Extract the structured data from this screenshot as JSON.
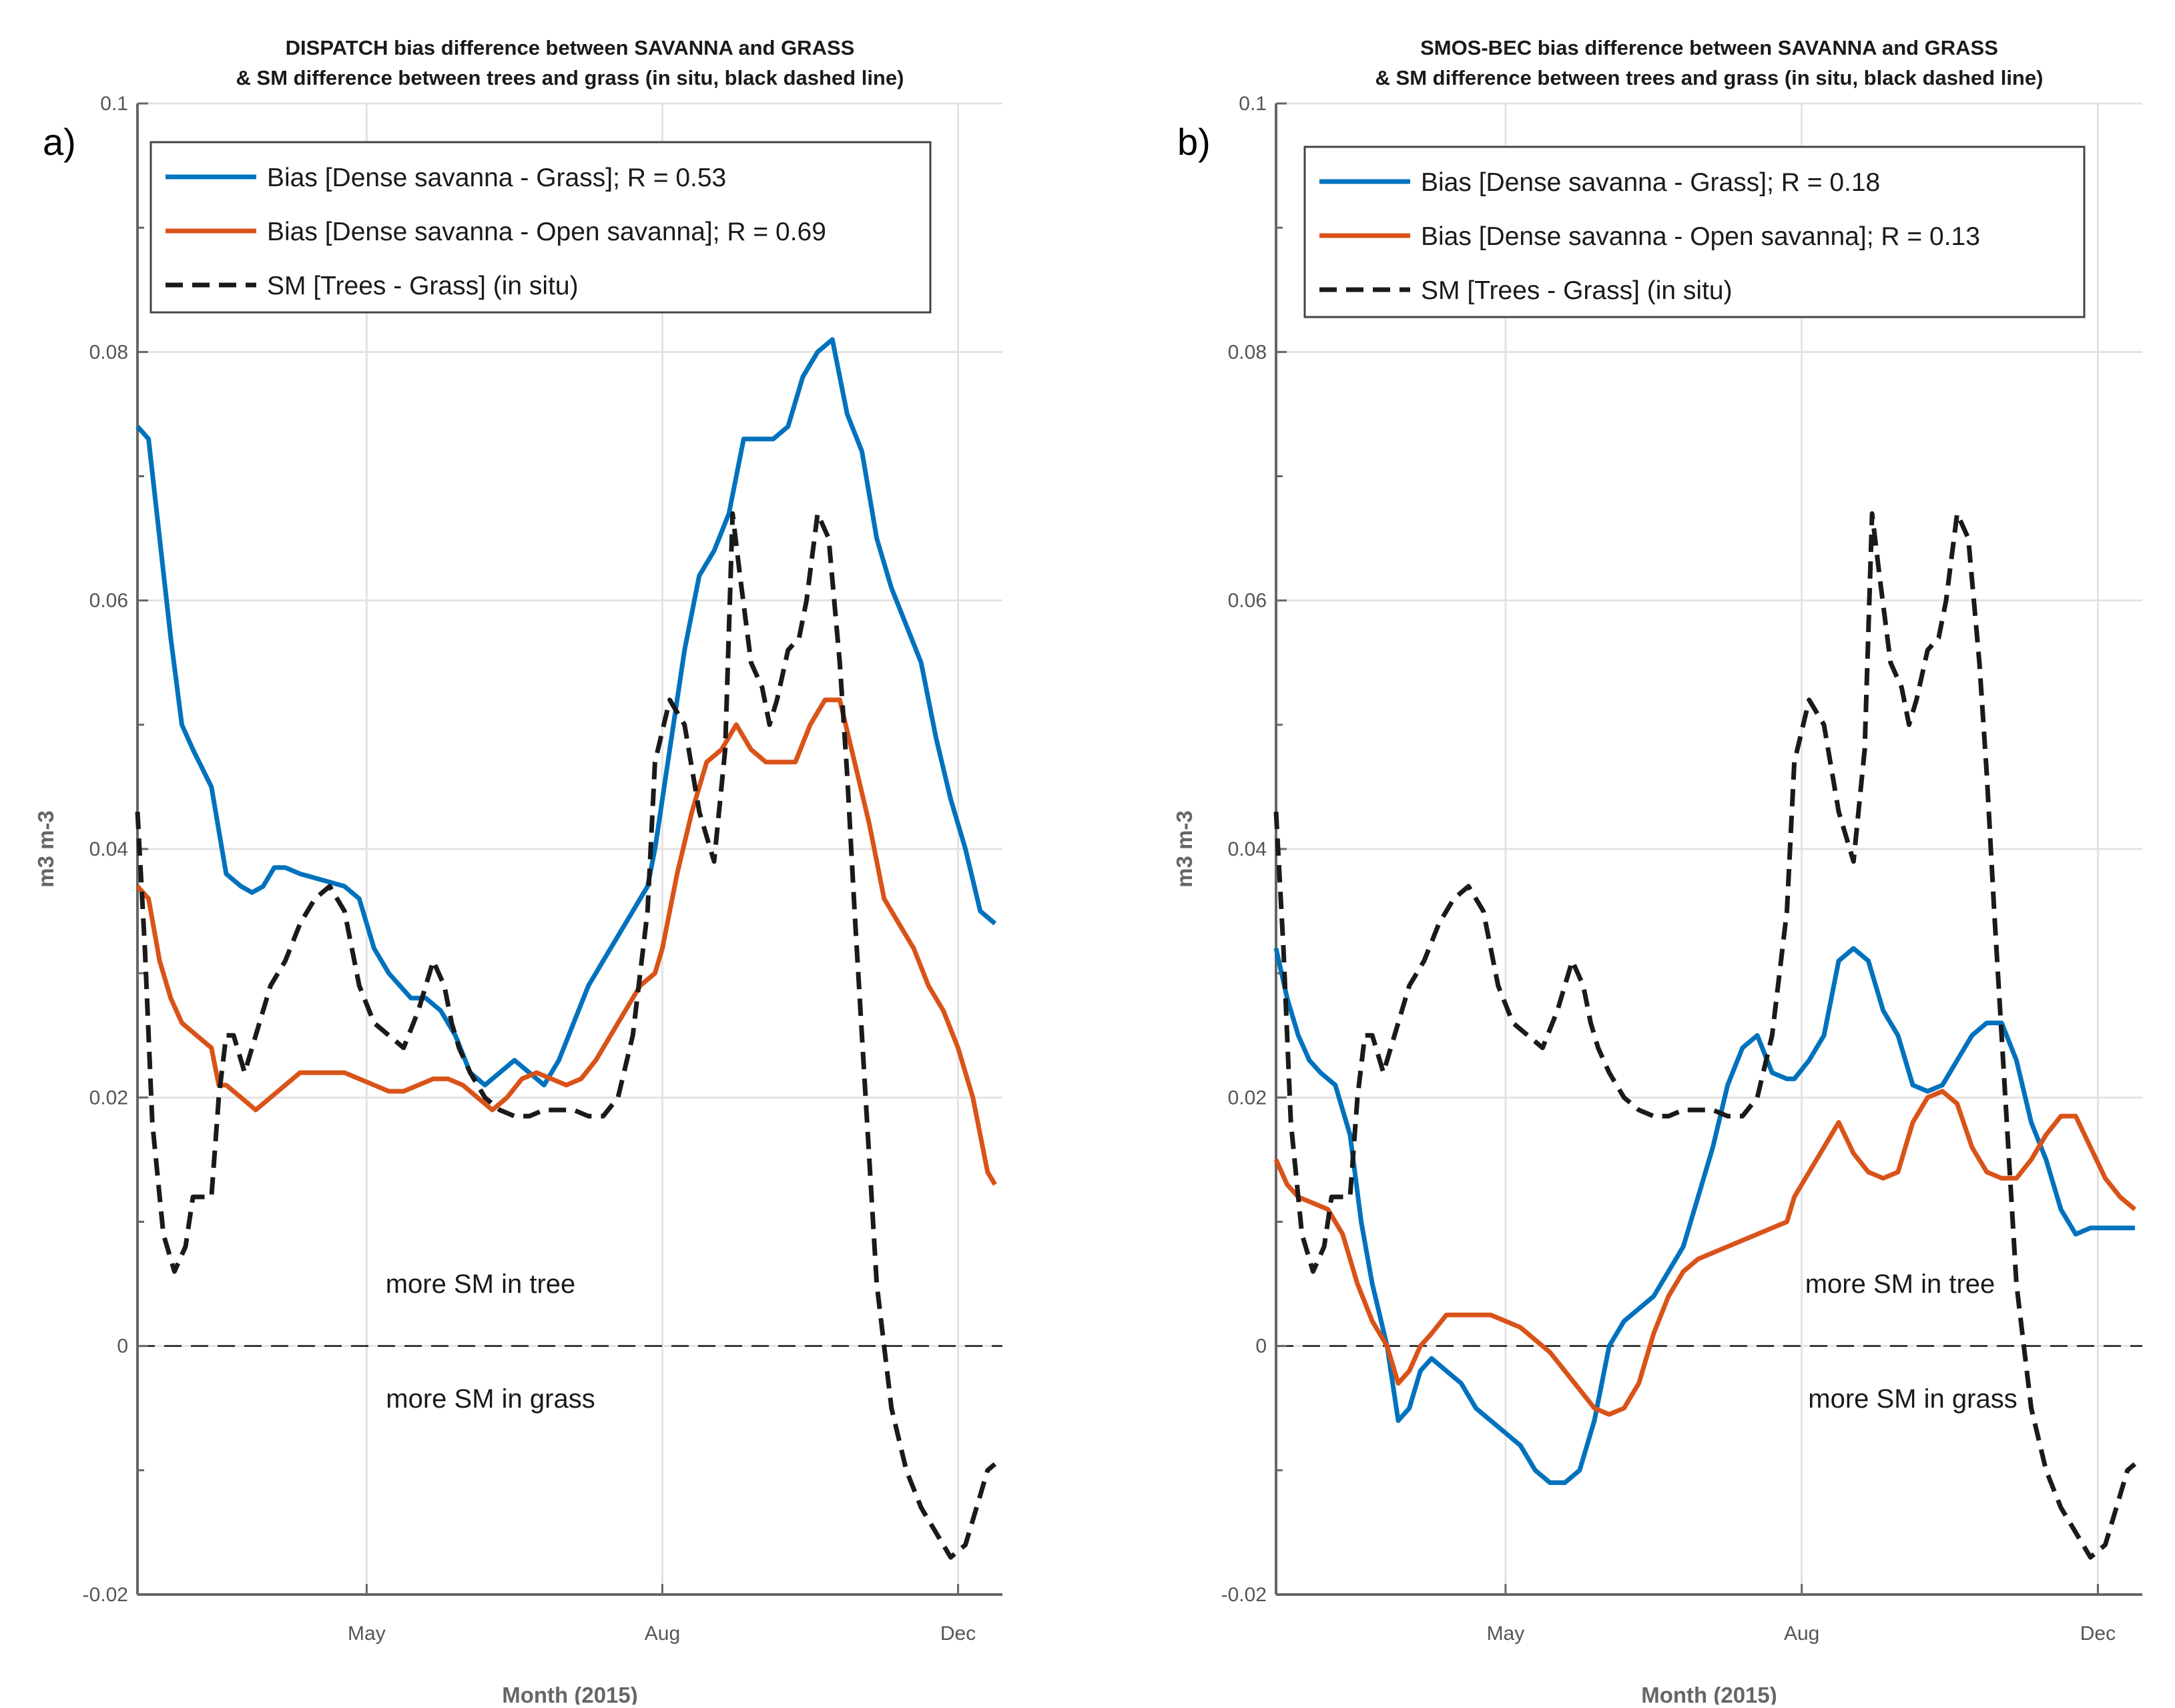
{
  "chart_data": [
    {
      "type": "line",
      "panel_label": "a)",
      "title": [
        "DISPATCH bias difference between SAVANNA and GRASS",
        "& SM difference between trees and grass (in situ, black dashed line)"
      ],
      "xlabel": "Month (2015)",
      "ylabel": "m3 m-3",
      "ylim": [
        -0.02,
        0.1
      ],
      "yticks": [
        -0.02,
        0,
        0.02,
        0.04,
        0.06,
        0.08,
        0.1
      ],
      "ytick_labels": [
        "-0.02",
        "0",
        "0.02",
        "0.04",
        "0.06",
        "0.08",
        "0.1"
      ],
      "xlim": [
        0,
        11.7
      ],
      "xticks": [
        3.1,
        7.1,
        11.1
      ],
      "xtick_labels": [
        "May",
        "Aug",
        "Dec"
      ],
      "grid": true,
      "legend_position": "top-left",
      "annotations": [
        "more SM in tree",
        "more SM in grass"
      ],
      "zero_line": true,
      "series": [
        {
          "name": "Bias [Dense savanna - Grass]; R = 0.53",
          "color": "#0072BD",
          "style": "solid",
          "x": [
            0,
            0.15,
            0.3,
            0.45,
            0.6,
            0.75,
            1.0,
            1.2,
            1.4,
            1.55,
            1.7,
            1.85,
            2.0,
            2.2,
            2.5,
            2.8,
            3.0,
            3.2,
            3.4,
            3.7,
            3.9,
            4.1,
            4.3,
            4.5,
            4.7,
            4.9,
            5.1,
            5.3,
            5.5,
            5.7,
            5.9,
            6.1,
            6.3,
            6.5,
            6.7,
            6.9,
            7.0,
            7.2,
            7.4,
            7.6,
            7.8,
            8.0,
            8.2,
            8.4,
            8.6,
            8.8,
            9.0,
            9.2,
            9.4,
            9.6,
            9.8,
            10.0,
            10.2,
            10.4,
            10.6,
            10.8,
            11.0,
            11.2,
            11.4,
            11.6
          ],
          "values": [
            0.074,
            0.073,
            0.065,
            0.057,
            0.05,
            0.048,
            0.045,
            0.038,
            0.037,
            0.0365,
            0.037,
            0.0385,
            0.0385,
            0.038,
            0.0375,
            0.037,
            0.036,
            0.032,
            0.03,
            0.028,
            0.028,
            0.027,
            0.025,
            0.022,
            0.021,
            0.022,
            0.023,
            0.022,
            0.021,
            0.023,
            0.026,
            0.029,
            0.031,
            0.033,
            0.035,
            0.037,
            0.04,
            0.048,
            0.056,
            0.062,
            0.064,
            0.067,
            0.073,
            0.073,
            0.073,
            0.074,
            0.078,
            0.08,
            0.081,
            0.075,
            0.072,
            0.065,
            0.061,
            0.058,
            0.055,
            0.049,
            0.044,
            0.04,
            0.035,
            0.034
          ]
        },
        {
          "name": "Bias [Dense savanna - Open savanna]; R = 0.69",
          "color": "#D95319",
          "style": "solid",
          "x": [
            0,
            0.15,
            0.3,
            0.45,
            0.6,
            0.8,
            1.0,
            1.1,
            1.2,
            1.4,
            1.6,
            1.8,
            2.0,
            2.2,
            2.5,
            2.8,
            3.0,
            3.2,
            3.4,
            3.6,
            3.8,
            4.0,
            4.2,
            4.4,
            4.6,
            4.8,
            5.0,
            5.2,
            5.4,
            5.6,
            5.8,
            6.0,
            6.2,
            6.4,
            6.6,
            6.8,
            7.0,
            7.1,
            7.3,
            7.5,
            7.7,
            7.9,
            8.1,
            8.3,
            8.5,
            8.7,
            8.9,
            9.1,
            9.3,
            9.5,
            9.7,
            9.9,
            10.1,
            10.3,
            10.5,
            10.7,
            10.9,
            11.1,
            11.3,
            11.5,
            11.6
          ],
          "values": [
            0.037,
            0.036,
            0.031,
            0.028,
            0.026,
            0.025,
            0.024,
            0.021,
            0.021,
            0.02,
            0.019,
            0.02,
            0.021,
            0.022,
            0.022,
            0.022,
            0.0215,
            0.021,
            0.0205,
            0.0205,
            0.021,
            0.0215,
            0.0215,
            0.021,
            0.02,
            0.019,
            0.02,
            0.0215,
            0.022,
            0.0215,
            0.021,
            0.0215,
            0.023,
            0.025,
            0.027,
            0.029,
            0.03,
            0.032,
            0.038,
            0.043,
            0.047,
            0.048,
            0.05,
            0.048,
            0.047,
            0.047,
            0.047,
            0.05,
            0.052,
            0.052,
            0.047,
            0.042,
            0.036,
            0.034,
            0.032,
            0.029,
            0.027,
            0.024,
            0.02,
            0.014,
            0.013
          ]
        },
        {
          "name": "SM [Trees - Grass] (in situ)",
          "color": "#1a1a1a",
          "style": "dashed",
          "x": [
            0,
            0.1,
            0.2,
            0.35,
            0.5,
            0.65,
            0.75,
            0.85,
            1.0,
            1.1,
            1.2,
            1.3,
            1.45,
            1.6,
            1.8,
            2.0,
            2.2,
            2.4,
            2.6,
            2.8,
            3.0,
            3.2,
            3.4,
            3.6,
            3.8,
            4.0,
            4.15,
            4.25,
            4.35,
            4.5,
            4.7,
            4.9,
            5.1,
            5.3,
            5.5,
            5.7,
            5.9,
            6.1,
            6.3,
            6.5,
            6.7,
            6.9,
            7.0,
            7.2,
            7.4,
            7.6,
            7.8,
            7.95,
            8.05,
            8.15,
            8.3,
            8.45,
            8.55,
            8.65,
            8.8,
            8.95,
            9.05,
            9.2,
            9.35,
            9.5,
            9.6,
            9.7,
            9.8,
            9.9,
            10.0,
            10.2,
            10.4,
            10.6,
            10.8,
            11.0,
            11.2,
            11.4,
            11.5,
            11.6
          ],
          "values": [
            0.043,
            0.032,
            0.018,
            0.009,
            0.006,
            0.008,
            0.012,
            0.012,
            0.012,
            0.02,
            0.025,
            0.025,
            0.022,
            0.025,
            0.029,
            0.031,
            0.034,
            0.036,
            0.037,
            0.035,
            0.029,
            0.026,
            0.025,
            0.024,
            0.027,
            0.031,
            0.029,
            0.026,
            0.024,
            0.022,
            0.02,
            0.019,
            0.0185,
            0.0185,
            0.019,
            0.019,
            0.019,
            0.0185,
            0.0185,
            0.02,
            0.025,
            0.035,
            0.047,
            0.052,
            0.05,
            0.043,
            0.039,
            0.048,
            0.067,
            0.062,
            0.055,
            0.053,
            0.05,
            0.052,
            0.056,
            0.057,
            0.06,
            0.067,
            0.065,
            0.055,
            0.046,
            0.035,
            0.025,
            0.015,
            0.005,
            -0.005,
            -0.01,
            -0.013,
            -0.015,
            -0.017,
            -0.016,
            -0.012,
            -0.01,
            -0.0095
          ]
        }
      ]
    },
    {
      "type": "line",
      "panel_label": "b)",
      "title": [
        "SMOS-BEC bias difference between SAVANNA and GRASS",
        "& SM difference between trees and grass (in situ, black dashed line)"
      ],
      "xlabel": "Month (2015)",
      "ylabel": "m3 m-3",
      "ylim": [
        -0.02,
        0.1
      ],
      "yticks": [
        -0.02,
        0,
        0.02,
        0.04,
        0.06,
        0.08,
        0.1
      ],
      "ytick_labels": [
        "-0.02",
        "0",
        "0.02",
        "0.04",
        "0.06",
        "0.08",
        "0.1"
      ],
      "xlim": [
        0,
        11.7
      ],
      "xticks": [
        3.1,
        7.1,
        11.1
      ],
      "xtick_labels": [
        "May",
        "Aug",
        "Dec"
      ],
      "grid": true,
      "legend_position": "top-left",
      "annotations": [
        "more SM in tree",
        "more SM in grass"
      ],
      "zero_line": true,
      "series": [
        {
          "name": "Bias [Dense savanna - Grass]; R = 0.18",
          "color": "#0072BD",
          "style": "solid",
          "x": [
            0,
            0.15,
            0.3,
            0.45,
            0.6,
            0.8,
            1.0,
            1.15,
            1.3,
            1.5,
            1.65,
            1.8,
            1.95,
            2.1,
            2.3,
            2.5,
            2.7,
            2.9,
            3.1,
            3.3,
            3.5,
            3.7,
            3.9,
            4.1,
            4.3,
            4.5,
            4.7,
            4.9,
            5.1,
            5.3,
            5.5,
            5.7,
            5.9,
            6.1,
            6.3,
            6.5,
            6.7,
            6.9,
            7.0,
            7.2,
            7.4,
            7.6,
            7.8,
            8.0,
            8.2,
            8.4,
            8.6,
            8.8,
            9.0,
            9.2,
            9.4,
            9.6,
            9.8,
            10.0,
            10.2,
            10.4,
            10.6,
            10.8,
            11.0,
            11.2,
            11.4,
            11.6
          ],
          "values": [
            0.032,
            0.028,
            0.025,
            0.023,
            0.022,
            0.021,
            0.017,
            0.01,
            0.005,
            0.0,
            -0.006,
            -0.005,
            -0.002,
            -0.001,
            -0.002,
            -0.003,
            -0.005,
            -0.006,
            -0.007,
            -0.008,
            -0.01,
            -0.011,
            -0.011,
            -0.01,
            -0.006,
            0.0,
            0.002,
            0.003,
            0.004,
            0.006,
            0.008,
            0.012,
            0.016,
            0.021,
            0.024,
            0.025,
            0.022,
            0.0215,
            0.0215,
            0.023,
            0.025,
            0.031,
            0.032,
            0.031,
            0.027,
            0.025,
            0.021,
            0.0205,
            0.021,
            0.023,
            0.025,
            0.026,
            0.026,
            0.023,
            0.018,
            0.015,
            0.011,
            0.009,
            0.0095,
            0.0095,
            0.0095,
            0.0095
          ]
        },
        {
          "name": "Bias [Dense savanna - Open savanna]; R = 0.13",
          "color": "#D95319",
          "style": "solid",
          "x": [
            0,
            0.15,
            0.3,
            0.5,
            0.7,
            0.9,
            1.1,
            1.3,
            1.5,
            1.65,
            1.8,
            1.95,
            2.1,
            2.3,
            2.5,
            2.7,
            2.9,
            3.1,
            3.3,
            3.5,
            3.7,
            3.9,
            4.1,
            4.3,
            4.5,
            4.7,
            4.9,
            5.1,
            5.3,
            5.5,
            5.7,
            5.9,
            6.1,
            6.3,
            6.5,
            6.7,
            6.9,
            7.0,
            7.2,
            7.4,
            7.6,
            7.8,
            8.0,
            8.2,
            8.4,
            8.6,
            8.8,
            9.0,
            9.2,
            9.4,
            9.6,
            9.8,
            10.0,
            10.2,
            10.4,
            10.6,
            10.8,
            11.0,
            11.2,
            11.4,
            11.6
          ],
          "values": [
            0.015,
            0.013,
            0.012,
            0.0115,
            0.011,
            0.009,
            0.005,
            0.002,
            0.0,
            -0.003,
            -0.002,
            0.0,
            0.001,
            0.0025,
            0.0025,
            0.0025,
            0.0025,
            0.002,
            0.0015,
            0.0005,
            -0.0005,
            -0.002,
            -0.0035,
            -0.005,
            -0.0055,
            -0.005,
            -0.003,
            0.001,
            0.004,
            0.006,
            0.007,
            0.0075,
            0.008,
            0.0085,
            0.009,
            0.0095,
            0.01,
            0.012,
            0.014,
            0.016,
            0.018,
            0.0155,
            0.014,
            0.0135,
            0.014,
            0.018,
            0.02,
            0.0205,
            0.0195,
            0.016,
            0.014,
            0.0135,
            0.0135,
            0.015,
            0.017,
            0.0185,
            0.0185,
            0.016,
            0.0135,
            0.012,
            0.011
          ]
        },
        {
          "name": "SM [Trees - Grass] (in situ)",
          "color": "#1a1a1a",
          "style": "dashed",
          "x": [
            0,
            0.1,
            0.2,
            0.35,
            0.5,
            0.65,
            0.75,
            0.85,
            1.0,
            1.1,
            1.2,
            1.3,
            1.45,
            1.6,
            1.8,
            2.0,
            2.2,
            2.4,
            2.6,
            2.8,
            3.0,
            3.2,
            3.4,
            3.6,
            3.8,
            4.0,
            4.15,
            4.25,
            4.35,
            4.5,
            4.7,
            4.9,
            5.1,
            5.3,
            5.5,
            5.7,
            5.9,
            6.1,
            6.3,
            6.5,
            6.7,
            6.9,
            7.0,
            7.2,
            7.4,
            7.6,
            7.8,
            7.95,
            8.05,
            8.15,
            8.3,
            8.45,
            8.55,
            8.65,
            8.8,
            8.95,
            9.05,
            9.2,
            9.35,
            9.5,
            9.6,
            9.7,
            9.8,
            9.9,
            10.0,
            10.2,
            10.4,
            10.6,
            10.8,
            11.0,
            11.2,
            11.4,
            11.5,
            11.6
          ],
          "values": [
            0.043,
            0.032,
            0.018,
            0.009,
            0.006,
            0.008,
            0.012,
            0.012,
            0.012,
            0.02,
            0.025,
            0.025,
            0.022,
            0.025,
            0.029,
            0.031,
            0.034,
            0.036,
            0.037,
            0.035,
            0.029,
            0.026,
            0.025,
            0.024,
            0.027,
            0.031,
            0.029,
            0.026,
            0.024,
            0.022,
            0.02,
            0.019,
            0.0185,
            0.0185,
            0.019,
            0.019,
            0.019,
            0.0185,
            0.0185,
            0.02,
            0.025,
            0.035,
            0.047,
            0.052,
            0.05,
            0.043,
            0.039,
            0.048,
            0.067,
            0.062,
            0.055,
            0.053,
            0.05,
            0.052,
            0.056,
            0.057,
            0.06,
            0.067,
            0.065,
            0.055,
            0.046,
            0.035,
            0.025,
            0.015,
            0.005,
            -0.005,
            -0.01,
            -0.013,
            -0.015,
            -0.017,
            -0.016,
            -0.012,
            -0.01,
            -0.0095
          ]
        }
      ]
    }
  ]
}
